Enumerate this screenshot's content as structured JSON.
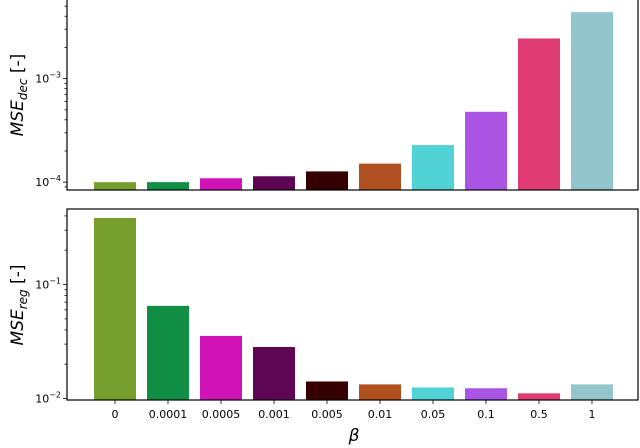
{
  "chart_data": [
    {
      "type": "bar",
      "panel": "top",
      "title": "",
      "xlabel": "",
      "ylabel": "MSE_dec [-]",
      "ylabel_main": "MSE",
      "ylabel_sub": "dec",
      "ylabel_unit": " [-]",
      "yscale": "log",
      "ylim": [
        8.4e-05,
        0.006
      ],
      "yticks": [
        {
          "value": 0.0001,
          "label_base": "10",
          "label_exp": "−4"
        },
        {
          "value": 0.001,
          "label_base": "10",
          "label_exp": "−3"
        }
      ],
      "categories": [
        "0",
        "0.0001",
        "0.0005",
        "0.001",
        "0.005",
        "0.01",
        "0.05",
        "0.1",
        "0.5",
        "1"
      ],
      "values": [
        0.0001,
        0.0001,
        0.000109,
        0.000114,
        0.000127,
        0.000151,
        0.000228,
        0.000478,
        0.00244,
        0.00438
      ],
      "colors": [
        "#759e2c",
        "#108f44",
        "#d012b6",
        "#5e0654",
        "#360003",
        "#b0501e",
        "#51d3d5",
        "#aa55e3",
        "#df3c73",
        "#92c6cc"
      ],
      "grid": false,
      "legend": null
    },
    {
      "type": "bar",
      "panel": "bottom",
      "title": "",
      "xlabel": "β",
      "ylabel": "MSE_reg [-]",
      "ylabel_main": "MSE",
      "ylabel_sub": "reg",
      "ylabel_unit": " [-]",
      "yscale": "log",
      "ylim": [
        0.0097,
        0.46
      ],
      "yticks": [
        {
          "value": 0.01,
          "label_base": "10",
          "label_exp": "−2"
        },
        {
          "value": 0.1,
          "label_base": "10",
          "label_exp": "−1"
        }
      ],
      "categories": [
        "0",
        "0.0001",
        "0.0005",
        "0.001",
        "0.005",
        "0.01",
        "0.05",
        "0.1",
        "0.5",
        "1"
      ],
      "values": [
        0.384,
        0.065,
        0.0354,
        0.0283,
        0.0141,
        0.0133,
        0.0125,
        0.0123,
        0.0111,
        0.0133
      ],
      "colors": [
        "#759e2c",
        "#108f44",
        "#d012b6",
        "#5e0654",
        "#360003",
        "#b0501e",
        "#51d3d5",
        "#aa55e3",
        "#df3c73",
        "#92c6cc"
      ],
      "grid": false,
      "legend": null
    }
  ]
}
